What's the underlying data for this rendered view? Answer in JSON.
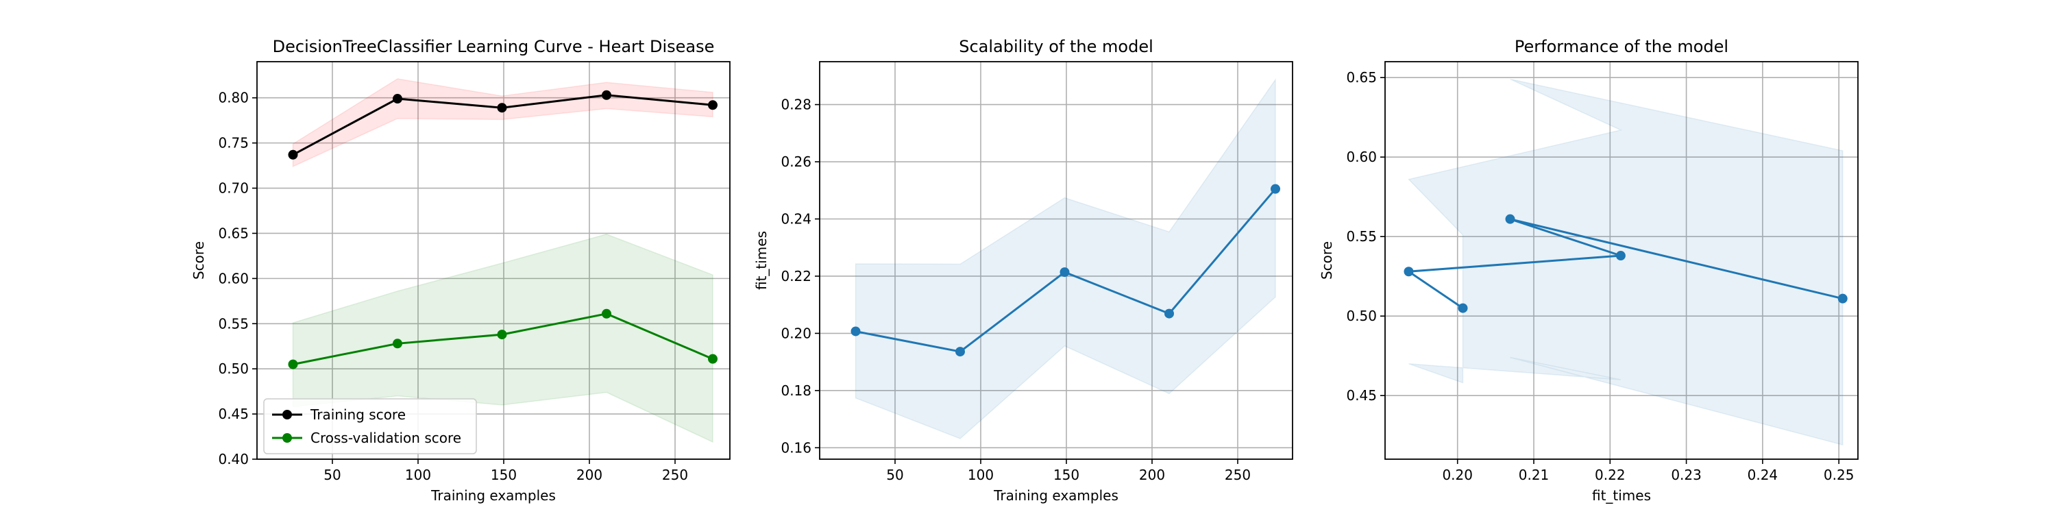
{
  "chart_data": [
    {
      "type": "line",
      "title": "DecisionTreeClassifier Learning Curve - Heart Disease",
      "xlabel": "Training examples",
      "ylabel": "Score",
      "xlim": [
        6,
        282
      ],
      "ylim": [
        0.4,
        0.84
      ],
      "xticks": [
        50,
        100,
        150,
        200,
        250
      ],
      "xtick_labels": [
        "50",
        "100",
        "150",
        "200",
        "250"
      ],
      "yticks": [
        0.4,
        0.45,
        0.5,
        0.55,
        0.6,
        0.65,
        0.7,
        0.75,
        0.8
      ],
      "ytick_labels": [
        "0.40",
        "0.45",
        "0.50",
        "0.55",
        "0.60",
        "0.65",
        "0.70",
        "0.75",
        "0.80"
      ],
      "grid": true,
      "legend": "lower left",
      "x": [
        27,
        88,
        149,
        210,
        272
      ],
      "series": [
        {
          "name": "Training score",
          "color": "#000000",
          "fill_color": "#ff0000",
          "values": [
            0.737,
            0.799,
            0.789,
            0.803,
            0.792
          ],
          "lower": [
            0.724,
            0.777,
            0.776,
            0.788,
            0.779
          ],
          "upper": [
            0.749,
            0.821,
            0.802,
            0.817,
            0.806
          ]
        },
        {
          "name": "Cross-validation score",
          "color": "#008000",
          "fill_color": "#008000",
          "values": [
            0.505,
            0.528,
            0.538,
            0.561,
            0.511
          ],
          "lower": [
            0.458,
            0.47,
            0.46,
            0.474,
            0.419
          ],
          "upper": [
            0.551,
            0.586,
            0.617,
            0.649,
            0.604
          ]
        }
      ]
    },
    {
      "type": "line",
      "title": "Scalability of the model",
      "xlabel": "Training examples",
      "ylabel": "fit_times",
      "xlim": [
        6,
        282
      ],
      "ylim": [
        0.156,
        0.295
      ],
      "xticks": [
        50,
        100,
        150,
        200,
        250
      ],
      "xtick_labels": [
        "50",
        "100",
        "150",
        "200",
        "250"
      ],
      "yticks": [
        0.16,
        0.18,
        0.2,
        0.22,
        0.24,
        0.26,
        0.28
      ],
      "ytick_labels": [
        "0.16",
        "0.18",
        "0.20",
        "0.22",
        "0.24",
        "0.26",
        "0.28"
      ],
      "grid": true,
      "x": [
        27,
        88,
        149,
        210,
        272
      ],
      "series": [
        {
          "color": "#1f77b4",
          "fill_color": "#1f77b4",
          "values": [
            0.2007,
            0.1936,
            0.2214,
            0.2069,
            0.2505
          ],
          "lower": [
            0.1774,
            0.1632,
            0.1956,
            0.1789,
            0.2127
          ],
          "upper": [
            0.2243,
            0.2242,
            0.2474,
            0.2355,
            0.2887
          ]
        }
      ]
    },
    {
      "type": "line",
      "title": "Performance of the model",
      "xlabel": "fit_times",
      "ylabel": "Score",
      "xlim": [
        0.1905,
        0.2525
      ],
      "ylim": [
        0.41,
        0.66
      ],
      "xticks": [
        0.2,
        0.21,
        0.22,
        0.23,
        0.24,
        0.25
      ],
      "xtick_labels": [
        "0.20",
        "0.21",
        "0.22",
        "0.23",
        "0.24",
        "0.25"
      ],
      "yticks": [
        0.45,
        0.5,
        0.55,
        0.6,
        0.65
      ],
      "ytick_labels": [
        "0.45",
        "0.50",
        "0.55",
        "0.60",
        "0.65"
      ],
      "grid": true,
      "series": [
        {
          "color": "#1f77b4",
          "fill_color": "#1f77b4",
          "x": [
            0.2007,
            0.1936,
            0.2214,
            0.2069,
            0.2505
          ],
          "values": [
            0.505,
            0.528,
            0.538,
            0.561,
            0.511
          ],
          "lower": [
            0.458,
            0.47,
            0.46,
            0.474,
            0.419
          ],
          "upper": [
            0.551,
            0.586,
            0.617,
            0.649,
            0.604
          ]
        }
      ]
    }
  ]
}
